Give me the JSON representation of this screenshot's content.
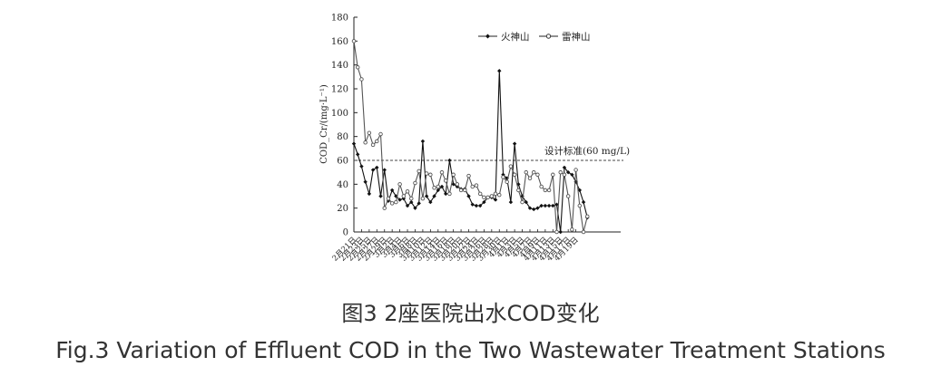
{
  "chart_data": {
    "type": "line",
    "ylabel": "COD_Cr/(mg·L⁻¹)",
    "ylim": [
      0,
      180
    ],
    "yticks": [
      0,
      20,
      40,
      60,
      80,
      100,
      120,
      140,
      160,
      180
    ],
    "x_tick_labels": [
      "2月21日",
      "2月23日",
      "2月25日",
      "2月27日",
      "2月29日",
      "3月2日",
      "3月4日",
      "3月6日",
      "3月8日",
      "3月10日",
      "3月12日",
      "3月14日",
      "3月16日",
      "3月18日",
      "3月20日",
      "3月22日",
      "3月24日",
      "3月26日",
      "3月28日",
      "3月30日",
      "4月1日",
      "4月3日",
      "4月5日",
      "4月7日",
      "4月9日",
      "4月11日",
      "4月13日",
      "4月15日",
      "4月17日",
      "4月19日"
    ],
    "x_range": [
      0,
      69
    ],
    "grid": false,
    "legend_position": "top-right",
    "reference_line": {
      "value": 60,
      "label": "设计标准(60 mg/L)"
    },
    "series": [
      {
        "name": "火神山",
        "marker": "filled-diamond",
        "values": [
          74,
          65,
          55,
          42,
          32,
          52,
          54,
          30,
          52,
          26,
          35,
          30,
          27,
          28,
          22,
          25,
          20,
          24,
          76,
          30,
          25,
          30,
          35,
          38,
          32,
          60,
          40,
          38,
          36,
          36,
          30,
          23,
          22,
          22,
          25,
          29,
          29,
          27,
          135,
          48,
          45,
          25,
          74,
          40,
          30,
          25,
          20,
          19,
          20,
          22,
          22,
          22,
          22,
          23,
          0,
          54,
          50,
          48,
          42,
          35,
          25,
          12
        ]
      },
      {
        "name": "雷神山",
        "marker": "open-circle",
        "values": [
          160,
          138,
          128,
          75,
          83,
          73,
          76,
          82,
          20,
          28,
          24,
          25,
          40,
          30,
          34,
          28,
          41,
          51,
          28,
          49,
          48,
          37,
          38,
          50,
          43,
          32,
          48,
          40,
          35,
          35,
          47,
          38,
          39,
          32,
          29,
          29,
          30,
          32,
          31,
          46,
          42,
          55,
          48,
          35,
          25,
          50,
          45,
          50,
          48,
          38,
          35,
          35,
          48,
          0,
          50,
          48,
          30,
          2,
          52,
          22,
          0,
          13
        ]
      }
    ]
  },
  "captions": {
    "cn": "图3 2座医院出水COD变化",
    "en": "Fig.3 Variation of Effluent COD in the Two Wastewater Treatment Stations"
  }
}
